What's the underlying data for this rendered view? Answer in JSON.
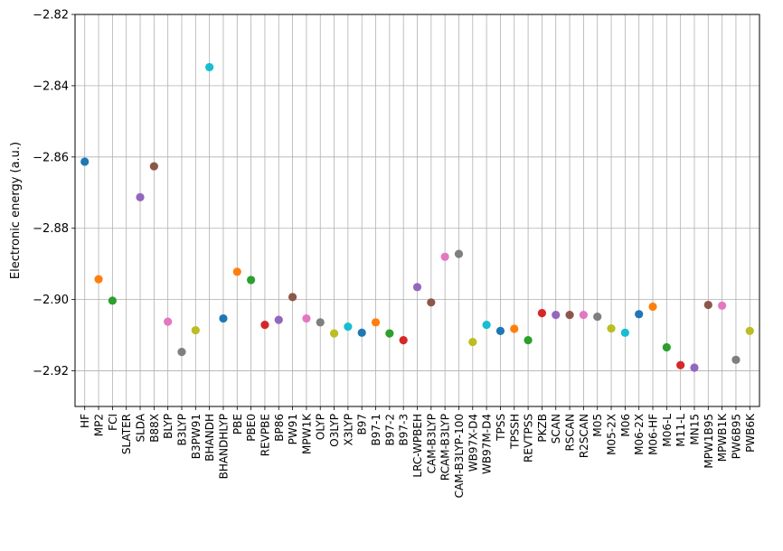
{
  "chart_data": {
    "type": "scatter",
    "title": "",
    "xlabel": "",
    "ylabel": "Electronic energy (a.u.)",
    "ylim": [
      -2.93,
      -2.82
    ],
    "yticks": [
      -2.92,
      -2.9,
      -2.88,
      -2.86,
      -2.84,
      -2.82
    ],
    "ytick_labels": [
      "−2.92",
      "−2.90",
      "−2.88",
      "−2.86",
      "−2.84",
      "−2.82"
    ],
    "grid": true,
    "legend": false,
    "categories": [
      "HF",
      "MP2",
      "FCI",
      "SLATER",
      "SLDA",
      "B88X",
      "BLYP",
      "B3LYP",
      "B3PW91",
      "BHANDH",
      "BHANDHLYP",
      "PBE",
      "PBE0",
      "REVPBE",
      "BP86",
      "PW91",
      "MPW1K",
      "OLYP",
      "O3LYP",
      "X3LYP",
      "B97",
      "B97-1",
      "B97-2",
      "B97-3",
      "LRC-WPBEH",
      "CAM-B3LYP",
      "RCAM-B3LYP",
      "CAM-B3LYP-100",
      "WB97X-D4",
      "WB97M-D4",
      "TPSS",
      "TPSSH",
      "REVTPSS",
      "PKZB",
      "SCAN",
      "RSCAN",
      "R2SCAN",
      "M05",
      "M05-2X",
      "M06",
      "M06-2X",
      "M06-HF",
      "M06-L",
      "M11-L",
      "MN15",
      "MPW1B95",
      "MPWB1K",
      "PW6B95",
      "PWB6K"
    ],
    "values": [
      -2.8613,
      -2.8943,
      -2.9003,
      null,
      -2.8713,
      -2.8626,
      -2.9062,
      -2.9147,
      -2.9086,
      -2.8348,
      -2.9053,
      -2.8922,
      -2.8945,
      -2.9071,
      -2.9057,
      -2.8993,
      -2.9053,
      -2.9064,
      -2.9095,
      -2.9076,
      -2.9093,
      -2.9064,
      -2.9095,
      -2.9114,
      -2.8965,
      -2.9008,
      -2.888,
      -2.8872,
      -2.9119,
      -2.9071,
      -2.9088,
      -2.9082,
      -2.9114,
      -2.9038,
      -2.9043,
      -2.9043,
      -2.9043,
      -2.9048,
      -2.9081,
      -2.9093,
      -2.9041,
      -2.902,
      -2.9134,
      -2.9184,
      -2.9191,
      -2.9015,
      -2.9017,
      -2.9169,
      -2.9088
    ],
    "colors": [
      "#1f77b4",
      "#ff7f0e",
      "#2ca02c",
      "#d62728",
      "#9467bd",
      "#8c564b",
      "#e377c2",
      "#7f7f7f",
      "#bcbd22",
      "#17becf"
    ]
  }
}
